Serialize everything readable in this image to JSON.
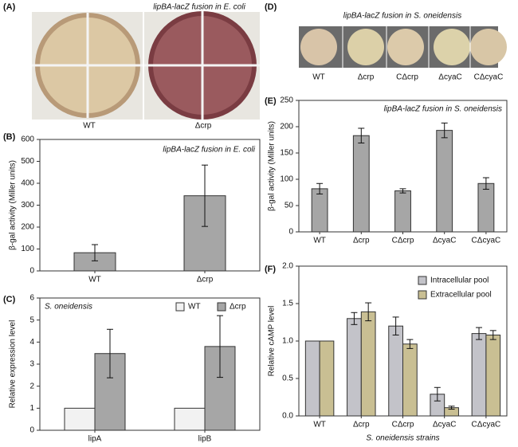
{
  "photos": [
    {
      "label": "(A)",
      "caption": "lipBA-lacZ fusion in E. coli",
      "plates": [
        "WT",
        "Δcrp"
      ]
    },
    {
      "label": "(D)",
      "caption": "lipBA-lacZ fusion in S. oneidensis",
      "plates": [
        "WT",
        "Δcrp",
        "CΔcrp",
        "ΔcyaC",
        "CΔcyaC"
      ]
    }
  ],
  "chart_data": [
    {
      "type": "bar",
      "label": "(B)",
      "annotation": "lipBA-lacZ fusion in E. coli",
      "y_label": "β-gal activity (Miller units)",
      "categories": [
        "WT",
        "Δcrp"
      ],
      "values": [
        83,
        343
      ],
      "errors": [
        37,
        140
      ],
      "color": "#a6a6a6",
      "ylim": [
        0,
        600
      ],
      "yticks": [
        0,
        100,
        200,
        300,
        400,
        500,
        600
      ]
    },
    {
      "type": "bar",
      "label": "(C)",
      "annotation": "S. oneidensis",
      "y_label": "Relative expression level",
      "categories": [
        "lipA",
        "lipB"
      ],
      "legend": "upper right",
      "series": [
        {
          "name": "WT",
          "color": "#f2f2f2",
          "values": [
            1,
            1
          ],
          "errors": [
            null,
            null
          ]
        },
        {
          "name": "Δcrp",
          "color": "#a6a6a6",
          "values": [
            3.48,
            3.8
          ],
          "errors": [
            1.1,
            1.4
          ]
        }
      ],
      "ylim": [
        0,
        6
      ],
      "yticks": [
        0,
        1,
        2,
        3,
        4,
        5,
        6
      ]
    },
    {
      "type": "bar",
      "label": "(E)",
      "annotation": "lipBA-lacZ fusion in S. oneidensis",
      "y_label": "β-gal activity (Miller units)",
      "categories": [
        "WT",
        "Δcrp",
        "CΔcrp",
        "ΔcyaC",
        "CΔcyaC"
      ],
      "values": [
        82,
        183,
        78,
        193,
        92
      ],
      "errors": [
        10,
        14,
        4,
        14,
        11
      ],
      "color": "#a6a6a6",
      "ylim": [
        0,
        250
      ],
      "yticks": [
        0,
        50,
        100,
        150,
        200,
        250
      ]
    },
    {
      "type": "bar",
      "label": "(F)",
      "y_label": "Relative cAMP level",
      "x_label": "S. oneidensis strains",
      "categories": [
        "WT",
        "Δcrp",
        "CΔcrp",
        "ΔcyaC",
        "CΔcyaC"
      ],
      "legend": "upper right",
      "series": [
        {
          "name": "Intracellular pool",
          "color": "#c3c3c9",
          "values": [
            1,
            1.3,
            1.2,
            0.29,
            1.1
          ],
          "errors": [
            null,
            0.08,
            0.12,
            0.09,
            0.08
          ]
        },
        {
          "name": "Extracellular pool",
          "color": "#c9bf93",
          "values": [
            1,
            1.39,
            0.96,
            0.11,
            1.08
          ],
          "errors": [
            null,
            0.12,
            0.06,
            0.02,
            0.06
          ]
        }
      ],
      "ylim": [
        0,
        2
      ],
      "yticks": [
        {
          "value": 0,
          "label": "0.0"
        },
        0.5,
        {
          "value": 1,
          "label": "1.0"
        },
        1.5,
        {
          "value": 2,
          "label": "2.0"
        }
      ]
    }
  ]
}
